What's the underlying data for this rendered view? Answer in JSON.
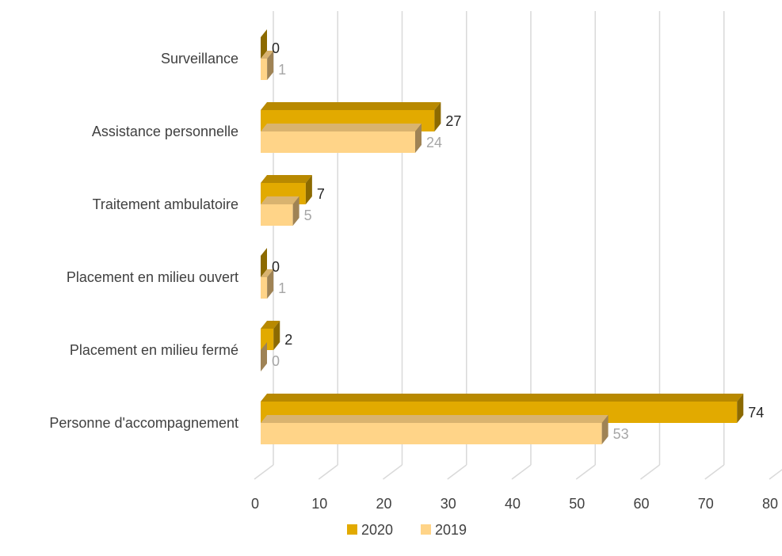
{
  "chart_data": {
    "type": "bar",
    "orientation": "horizontal",
    "style": "3d-clustered",
    "categories": [
      "Surveillance",
      "Assistance personnelle",
      "Traitement ambulatoire",
      "Placement en milieu ouvert",
      "Placement en milieu fermé",
      "Personne d'accompagnement"
    ],
    "series": [
      {
        "name": "2020",
        "values": [
          0,
          27,
          7,
          0,
          2,
          74
        ],
        "color": "#e2aa00",
        "side_color": "#8c6a00",
        "top_color": "#b88900",
        "label_color": "#262626"
      },
      {
        "name": "2019",
        "values": [
          1,
          24,
          5,
          1,
          0,
          53
        ],
        "color": "#ffd488",
        "side_color": "#9f8355",
        "top_color": "#d9b36f",
        "label_color": "#a6a6a6"
      }
    ],
    "xlim": [
      0,
      80
    ],
    "x_ticks": [
      0,
      10,
      20,
      30,
      40,
      50,
      60,
      70,
      80
    ],
    "grid": true,
    "legend_position": "bottom",
    "title": "",
    "xlabel": "",
    "ylabel": ""
  }
}
